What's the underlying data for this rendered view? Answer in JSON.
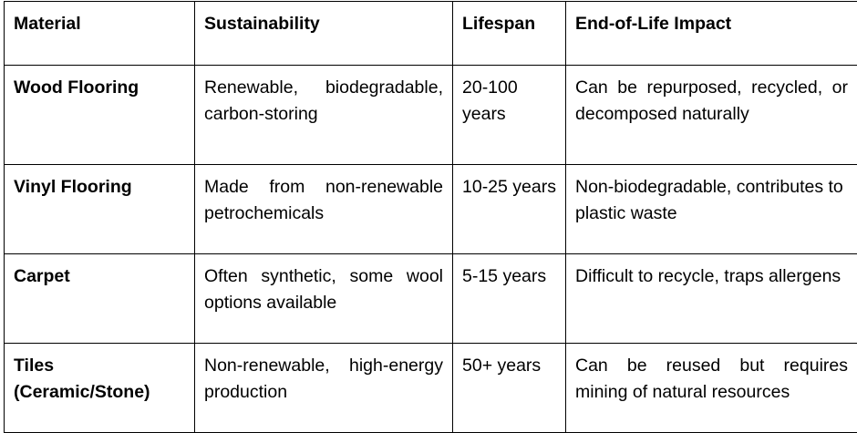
{
  "table": {
    "headers": [
      "Material",
      "Sustainability",
      "Lifespan",
      "End-of-Life Impact"
    ],
    "rows": [
      {
        "material": "Wood Flooring",
        "sustainability": "Renewable, biodegradable, carbon-storing",
        "lifespan": "20-100 years",
        "end_of_life": "Can be repurposed, recycled, or decomposed naturally"
      },
      {
        "material": "Vinyl Flooring",
        "sustainability": "Made from non-renewable petrochemicals",
        "lifespan": "10-25 years",
        "end_of_life": "Non-biodegradable, contributes to plastic waste"
      },
      {
        "material": "Carpet",
        "sustainability": "Often synthetic, some wool options available",
        "lifespan": "5-15 years",
        "end_of_life": "Difficult to recycle, traps allergens"
      },
      {
        "material": "Tiles (Ceramic/Stone)",
        "sustainability": "Non-renewable, high-energy production",
        "lifespan": "50+ years",
        "end_of_life": "Can be reused but requires mining of natural resources"
      }
    ]
  }
}
